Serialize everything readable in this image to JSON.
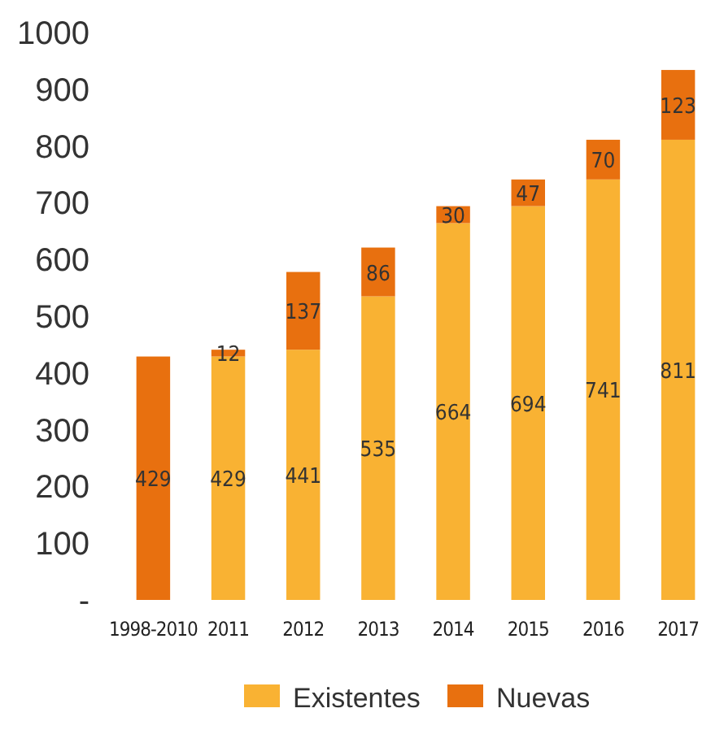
{
  "chart_data": {
    "type": "bar",
    "stacked": true,
    "categories": [
      "1998-2010",
      "2011",
      "2012",
      "2013",
      "2014",
      "2015",
      "2016",
      "2017"
    ],
    "series": [
      {
        "name": "Existentes",
        "color": "#f9b233",
        "values": [
          null,
          429,
          441,
          535,
          664,
          694,
          741,
          811
        ]
      },
      {
        "name": "Nuevas",
        "color": "#e8700f",
        "values": [
          429,
          12,
          137,
          86,
          30,
          47,
          70,
          123
        ]
      }
    ],
    "ylim": [
      0,
      1000
    ],
    "yticks": [
      {
        "value": 0,
        "label": "-"
      },
      100,
      200,
      300,
      400,
      500,
      600,
      700,
      800,
      900,
      1000
    ],
    "data_labels": true,
    "legend": "bottom",
    "grid": false
  }
}
